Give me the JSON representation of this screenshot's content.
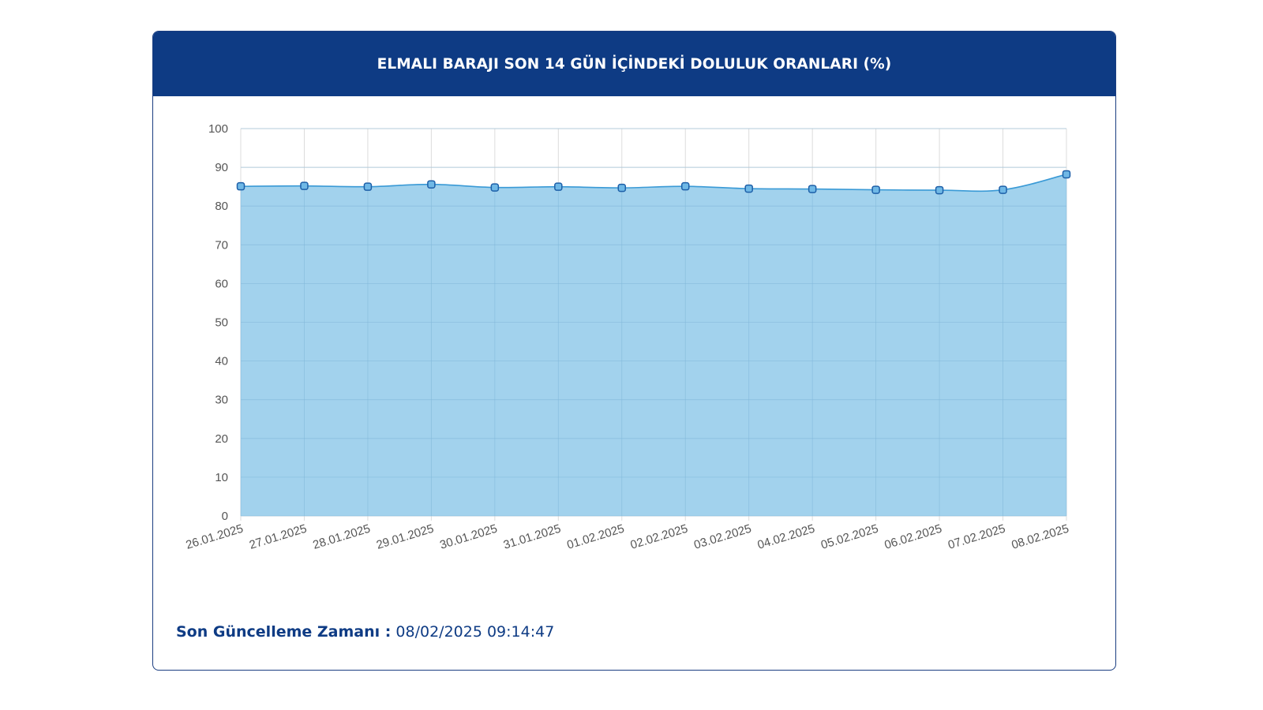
{
  "header": {
    "title": "ELMALI BARAJI SON 14 GÜN İÇİNDEKİ DOLULUK ORANLARI (%)"
  },
  "footer": {
    "label": "Son Güncelleme Zamanı :",
    "value": "08/02/2025 09:14:47"
  },
  "colors": {
    "header_bg": "#0e3b84",
    "area_fill": "#9dd0ec",
    "line": "#3a9ad6",
    "marker_fill": "#6fb8e6",
    "marker_stroke": "#1d5fa8",
    "grid": "#dcdcdc"
  },
  "chart_data": {
    "type": "area",
    "title": "ELMALI BARAJI SON 14 GÜN İÇİNDEKİ DOLULUK ORANLARI (%)",
    "x": [
      "26.01.2025",
      "27.01.2025",
      "28.01.2025",
      "29.01.2025",
      "30.01.2025",
      "31.01.2025",
      "01.02.2025",
      "02.02.2025",
      "03.02.2025",
      "04.02.2025",
      "05.02.2025",
      "06.02.2025",
      "07.02.2025",
      "08.02.2025"
    ],
    "series": [
      {
        "values": [
          85.1,
          85.2,
          85.0,
          85.6,
          84.8,
          85.0,
          84.7,
          85.1,
          84.5,
          84.4,
          84.2,
          84.1,
          84.2,
          88.2
        ]
      }
    ],
    "yticks": [
      0,
      10,
      20,
      30,
      40,
      50,
      60,
      70,
      80,
      90,
      100
    ],
    "ylim": [
      0,
      100
    ],
    "xlabel": "",
    "ylabel": "",
    "grid": true,
    "legend": "none"
  }
}
